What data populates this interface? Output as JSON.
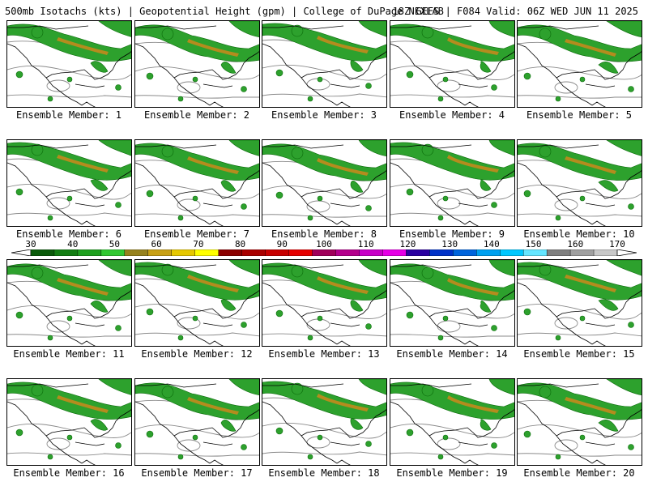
{
  "header": {
    "left": "500mb Isotachs (kts) | Geopotential Height (gpm) | College of DuPage NEXLAB",
    "right": "18Z GEFS | F084 Valid: 06Z WED JUN 11 2025"
  },
  "panels": [
    {
      "label": "Ensemble Member: 1"
    },
    {
      "label": "Ensemble Member: 2"
    },
    {
      "label": "Ensemble Member: 3"
    },
    {
      "label": "Ensemble Member: 4"
    },
    {
      "label": "Ensemble Member: 5"
    },
    {
      "label": "Ensemble Member: 6"
    },
    {
      "label": "Ensemble Member: 7"
    },
    {
      "label": "Ensemble Member: 8"
    },
    {
      "label": "Ensemble Member: 9"
    },
    {
      "label": "Ensemble Member: 10"
    },
    {
      "label": "Ensemble Member: 11"
    },
    {
      "label": "Ensemble Member: 12"
    },
    {
      "label": "Ensemble Member: 13"
    },
    {
      "label": "Ensemble Member: 14"
    },
    {
      "label": "Ensemble Member: 15"
    },
    {
      "label": "Ensemble Member: 16"
    },
    {
      "label": "Ensemble Member: 17"
    },
    {
      "label": "Ensemble Member: 18"
    },
    {
      "label": "Ensemble Member: 19"
    },
    {
      "label": "Ensemble Member: 20"
    }
  ],
  "colorbar": {
    "ticks": [
      "30",
      "40",
      "50",
      "60",
      "70",
      "80",
      "90",
      "100",
      "110",
      "120",
      "130",
      "140",
      "150",
      "160",
      "170"
    ],
    "colors": [
      "#0a5a0a",
      "#127d12",
      "#1ea01e",
      "#32c832",
      "#96821e",
      "#c8a014",
      "#e6c800",
      "#ffff00",
      "#8c0000",
      "#aa0000",
      "#c80000",
      "#e60000",
      "#a0005a",
      "#b4008c",
      "#c800c8",
      "#e600e6",
      "#2a00a0",
      "#0032c8",
      "#0064dc",
      "#00a0f0",
      "#00c8ff",
      "#64e6ff",
      "#808080",
      "#a0a0a0",
      "#c8c8c8"
    ],
    "min": 30,
    "max": 170
  },
  "colors": {
    "wind": "#2da12d",
    "wind_dark": "#0a6a0a",
    "wind_core": "#b48c1e",
    "coast": "#000000",
    "height": "#8a8a8a"
  }
}
